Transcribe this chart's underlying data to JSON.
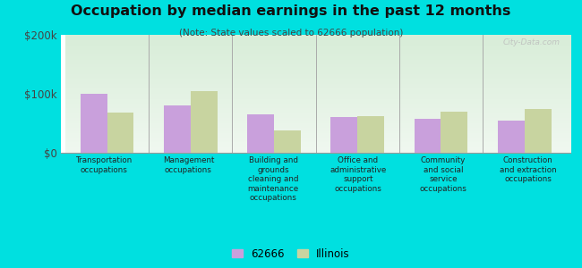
{
  "title": "Occupation by median earnings in the past 12 months",
  "subtitle": "(Note: State values scaled to 62666 population)",
  "categories": [
    "Transportation\noccupations",
    "Management\noccupations",
    "Building and\ngrounds\ncleaning and\nmaintenance\noccupations",
    "Office and\nadministrative\nsupport\noccupations",
    "Community\nand social\nservice\noccupations",
    "Construction\nand extraction\noccupations"
  ],
  "values_62666": [
    100000,
    80000,
    65000,
    60000,
    57000,
    55000
  ],
  "values_illinois": [
    68000,
    105000,
    38000,
    62000,
    70000,
    75000
  ],
  "color_62666": "#c9a0dc",
  "color_illinois": "#c8d4a0",
  "ylim": [
    0,
    200000
  ],
  "yticks": [
    0,
    100000,
    200000
  ],
  "ytick_labels": [
    "$0",
    "$100k",
    "$200k"
  ],
  "bg_outer": "#00e0e0",
  "bg_plot_top": "#d8edd8",
  "bg_plot_bottom": "#f0f8f0",
  "legend_label_62666": "62666",
  "legend_label_illinois": "Illinois",
  "watermark": "City-Data.com"
}
